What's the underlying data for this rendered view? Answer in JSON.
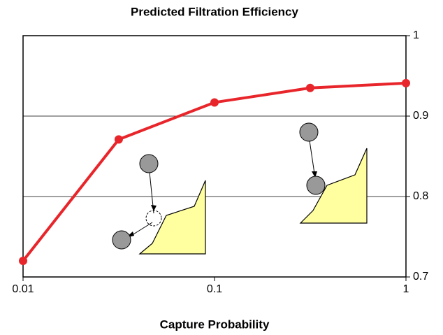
{
  "chart_data": {
    "type": "line",
    "title": "Predicted Filtration Efficiency",
    "x_label": "Capture Probability",
    "x": [
      0.01,
      0.0316,
      0.1,
      0.316,
      1
    ],
    "series": [
      {
        "color": "#e8252a",
        "values": [
          0.72,
          0.871,
          0.917,
          0.935,
          0.941
        ]
      }
    ],
    "xscale": "log",
    "xlim": [
      0.01,
      1
    ],
    "xticks": [
      0.01,
      0.1,
      1
    ],
    "ylim": [
      0.7,
      1
    ],
    "yticks": [
      0.7,
      0.8,
      0.9,
      1
    ],
    "y_axis_side": "right",
    "grid": true
  }
}
